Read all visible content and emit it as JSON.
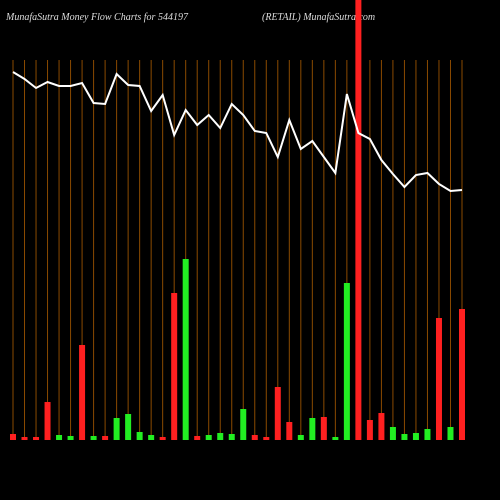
{
  "chart_data": {
    "type": "bar",
    "title": "MunafaSutra  Money Flow  Charts for 544197",
    "subtitle": "(RETAIL) MunafaSutra.com",
    "categories": [
      null,
      null,
      null,
      null,
      null,
      null,
      null,
      null,
      null,
      null,
      null,
      null,
      null,
      null,
      null,
      null,
      null,
      null,
      null,
      null,
      null,
      null,
      null,
      null,
      null,
      null,
      null,
      null,
      null,
      null,
      null,
      null,
      null,
      null,
      null,
      null,
      null,
      null,
      null,
      null
    ],
    "values": [
      6,
      3,
      3,
      38,
      5,
      4,
      95,
      4,
      4,
      22,
      26,
      8,
      5,
      3,
      147,
      181,
      4,
      5,
      7,
      6,
      31,
      5,
      3,
      53,
      18,
      5,
      22,
      23,
      3,
      157,
      440,
      20,
      27,
      13,
      6,
      7,
      11,
      122,
      13,
      131
    ],
    "colors": [
      "#ff2020",
      "#ff2020",
      "#ff2020",
      "#ff2020",
      "#22ee22",
      "#22ee22",
      "#ff2020",
      "#22ee22",
      "#ff2020",
      "#22ee22",
      "#22ee22",
      "#22ee22",
      "#22ee22",
      "#ff2020",
      "#ff2020",
      "#22ee22",
      "#ff2020",
      "#22ee22",
      "#22ee22",
      "#22ee22",
      "#22ee22",
      "#ff2020",
      "#ff2020",
      "#ff2020",
      "#ff2020",
      "#22ee22",
      "#22ee22",
      "#ff2020",
      "#22ee22",
      "#22ee22",
      "#ff2020",
      "#ff2020",
      "#ff2020",
      "#22ee22",
      "#22ee22",
      "#22ee22",
      "#22ee22",
      "#ff2020",
      "#22ee22",
      "#ff2020"
    ],
    "line": {
      "color": "#ffffff",
      "values": [
        368,
        361,
        352,
        358,
        354,
        354,
        357,
        337,
        336,
        366,
        355,
        354,
        329,
        345,
        305,
        330,
        315,
        325,
        312,
        336,
        325,
        309,
        307,
        283,
        320,
        291,
        299,
        283,
        267,
        346,
        307,
        301,
        280,
        266,
        253,
        265,
        267,
        256,
        249,
        250
      ]
    }
  }
}
